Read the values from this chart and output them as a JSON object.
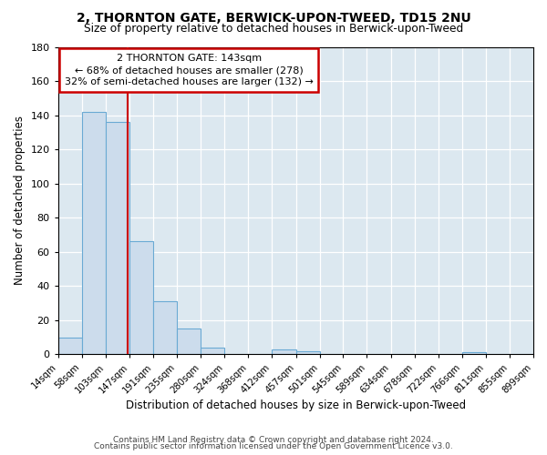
{
  "title": "2, THORNTON GATE, BERWICK-UPON-TWEED, TD15 2NU",
  "subtitle": "Size of property relative to detached houses in Berwick-upon-Tweed",
  "xlabel": "Distribution of detached houses by size in Berwick-upon-Tweed",
  "ylabel": "Number of detached properties",
  "footer_line1": "Contains HM Land Registry data © Crown copyright and database right 2024.",
  "footer_line2": "Contains public sector information licensed under the Open Government Licence v3.0.",
  "bin_edges": [
    14,
    58,
    103,
    147,
    191,
    235,
    280,
    324,
    368,
    412,
    457,
    501,
    545,
    589,
    634,
    678,
    722,
    766,
    811,
    855,
    899
  ],
  "bin_labels": [
    "14sqm",
    "58sqm",
    "103sqm",
    "147sqm",
    "191sqm",
    "235sqm",
    "280sqm",
    "324sqm",
    "368sqm",
    "412sqm",
    "457sqm",
    "501sqm",
    "545sqm",
    "589sqm",
    "634sqm",
    "678sqm",
    "722sqm",
    "766sqm",
    "811sqm",
    "855sqm",
    "899sqm"
  ],
  "bar_heights": [
    10,
    142,
    136,
    66,
    31,
    15,
    4,
    0,
    0,
    3,
    2,
    0,
    0,
    0,
    0,
    0,
    0,
    1,
    0,
    0
  ],
  "bar_color": "#ccdcec",
  "bar_edge_color": "#6aaad4",
  "ylim": [
    0,
    180
  ],
  "yticks": [
    0,
    20,
    40,
    60,
    80,
    100,
    120,
    140,
    160,
    180
  ],
  "property_line_x": 143,
  "property_line_color": "#cc0000",
  "annotation_title": "2 THORNTON GATE: 143sqm",
  "annotation_line1": "← 68% of detached houses are smaller (278)",
  "annotation_line2": "32% of semi-detached houses are larger (132) →",
  "annotation_box_color": "#cc0000",
  "background_color": "#ffffff",
  "plot_bg_color": "#dce8f0"
}
